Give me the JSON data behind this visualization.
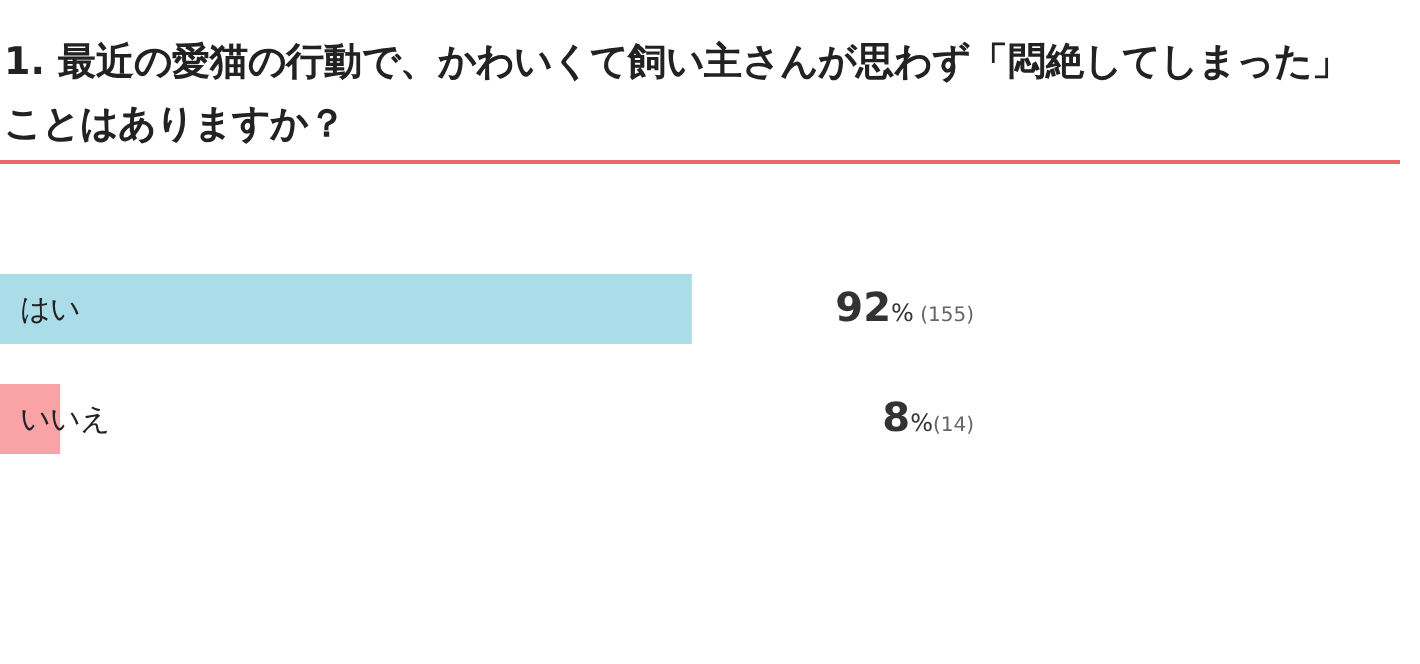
{
  "chart_data": {
    "type": "bar",
    "orientation": "horizontal",
    "title": "1. 最近の愛猫の行動で、かわいくて飼い主さんが思わず「悶絶してしまった」ことはありますか？",
    "categories": [
      "はい",
      "いいえ"
    ],
    "values": [
      92,
      8
    ],
    "colors": [
      "#abdde8",
      "#f9a3a6"
    ],
    "value_labels": [
      "92% (155)",
      "8%(14)"
    ]
  }
}
